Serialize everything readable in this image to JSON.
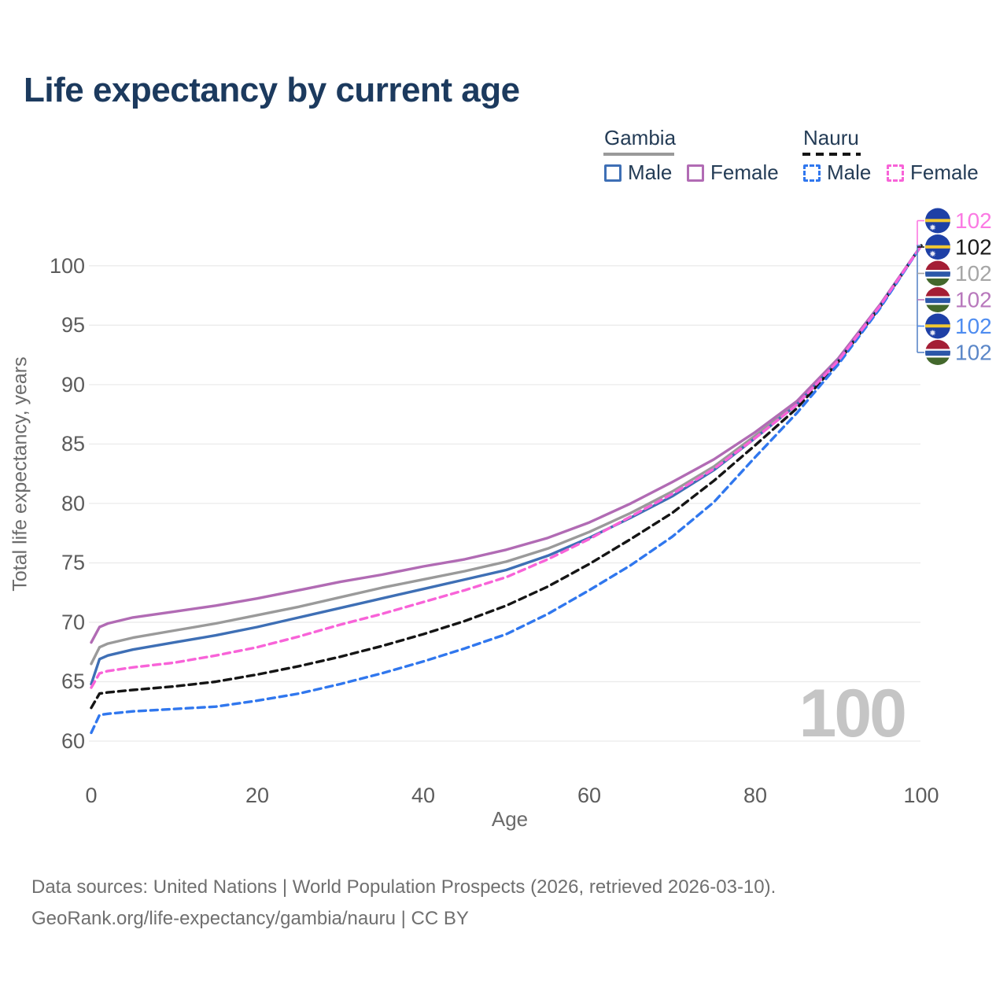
{
  "title": "Life expectancy by current age",
  "age_indicator": "100",
  "legend": {
    "position": "top-right",
    "groups": [
      {
        "label": "Gambia",
        "line_style": "solid",
        "line_color": "#9a9a9a",
        "items": [
          {
            "label": "Male",
            "color": "#3e6fb5",
            "style": "solid"
          },
          {
            "label": "Female",
            "color": "#b16bb4",
            "style": "solid"
          }
        ]
      },
      {
        "label": "Nauru",
        "line_style": "dashed",
        "line_color": "#151515",
        "items": [
          {
            "label": "Male",
            "color": "#3077ee",
            "style": "dashed"
          },
          {
            "label": "Female",
            "color": "#f863d8",
            "style": "dashed"
          }
        ]
      }
    ]
  },
  "chart_data": {
    "type": "line",
    "title": "Life expectancy by current age",
    "xlabel": "Age",
    "ylabel": "Total life expectancy, years",
    "x_ticks": [
      0,
      20,
      40,
      60,
      80,
      100
    ],
    "y_ticks": [
      60,
      65,
      70,
      75,
      80,
      85,
      90,
      95,
      100
    ],
    "xlim": [
      0,
      100
    ],
    "ylim": [
      58.5,
      103
    ],
    "grid": "horizontal",
    "x": [
      0,
      1,
      2,
      5,
      10,
      15,
      20,
      25,
      30,
      35,
      40,
      45,
      50,
      55,
      60,
      65,
      70,
      75,
      80,
      85,
      90,
      95,
      100
    ],
    "series": [
      {
        "name": "Gambia",
        "country": "Gambia",
        "sex": "both",
        "color": "#9a9a9a",
        "dash": false,
        "flag": "gambia",
        "endpoint_label": "102",
        "label_color": "#a6a6a6",
        "values": [
          66.5,
          67.9,
          68.2,
          68.7,
          69.3,
          69.9,
          70.6,
          71.3,
          72.1,
          72.9,
          73.6,
          74.3,
          75.1,
          76.2,
          77.6,
          79.2,
          81.0,
          83.1,
          85.7,
          88.4,
          92.1,
          96.6,
          101.7
        ]
      },
      {
        "name": "Gambia Female",
        "country": "Gambia",
        "sex": "female",
        "color": "#b16bb4",
        "dash": false,
        "flag": "gambia",
        "endpoint_label": "102",
        "label_color": "#b878bc",
        "values": [
          68.3,
          69.6,
          69.9,
          70.4,
          70.9,
          71.4,
          72.0,
          72.7,
          73.4,
          74.0,
          74.7,
          75.3,
          76.1,
          77.1,
          78.4,
          80.0,
          81.8,
          83.7,
          86.0,
          88.6,
          92.2,
          96.7,
          101.7
        ]
      },
      {
        "name": "Gambia Male",
        "country": "Gambia",
        "sex": "male",
        "color": "#3e6fb5",
        "dash": false,
        "flag": "gambia",
        "endpoint_label": "102",
        "label_color": "#5b87c8",
        "values": [
          64.8,
          66.9,
          67.2,
          67.7,
          68.3,
          68.9,
          69.6,
          70.4,
          71.2,
          72.0,
          72.8,
          73.6,
          74.4,
          75.6,
          77.1,
          78.8,
          80.6,
          82.8,
          85.5,
          88.3,
          92.0,
          96.6,
          101.7
        ]
      },
      {
        "name": "Nauru",
        "country": "Nauru",
        "sex": "both",
        "color": "#151515",
        "dash": true,
        "flag": "nauru",
        "endpoint_label": "102",
        "label_color": "#1a1a1a",
        "values": [
          62.8,
          64.0,
          64.1,
          64.3,
          64.6,
          65.0,
          65.6,
          66.3,
          67.1,
          68.0,
          69.0,
          70.1,
          71.4,
          73.0,
          74.9,
          77.0,
          79.2,
          81.9,
          84.9,
          88.0,
          91.9,
          96.5,
          101.7
        ]
      },
      {
        "name": "Nauru Male",
        "country": "Nauru",
        "sex": "male",
        "color": "#3077ee",
        "dash": true,
        "flag": "nauru",
        "endpoint_label": "102",
        "label_color": "#4e8cf0",
        "values": [
          60.7,
          62.2,
          62.3,
          62.5,
          62.7,
          62.9,
          63.4,
          64.0,
          64.8,
          65.7,
          66.7,
          67.8,
          69.0,
          70.7,
          72.7,
          74.8,
          77.2,
          80.1,
          83.9,
          87.6,
          91.7,
          96.4,
          101.7
        ]
      },
      {
        "name": "Nauru Female",
        "country": "Nauru",
        "sex": "female",
        "color": "#f863d8",
        "dash": true,
        "flag": "nauru",
        "endpoint_label": "102",
        "label_color": "#fb7ae3",
        "values": [
          64.5,
          65.7,
          65.9,
          66.2,
          66.6,
          67.2,
          67.9,
          68.8,
          69.8,
          70.7,
          71.7,
          72.7,
          73.8,
          75.3,
          77.0,
          78.9,
          80.8,
          82.9,
          85.5,
          88.3,
          92.0,
          96.6,
          101.7
        ]
      }
    ],
    "endpoint_marker_order_top_to_bottom": [
      "Nauru Female",
      "Nauru",
      "Gambia",
      "Gambia Female",
      "Nauru Male",
      "Gambia Male"
    ]
  },
  "flags": {
    "nauru": {
      "bg": "#1e40a6",
      "stripe": "#f2c832",
      "star": "#e8e9f5"
    },
    "gambia": {
      "red": "#a41e35",
      "white": "#ffffff",
      "blue": "#2b57a8",
      "green": "#43682c"
    }
  },
  "footer": {
    "line1": "Data sources: United Nations | World Population Prospects (2026, retrieved 2026-03-10).",
    "line2": "GeoRank.org/life-expectancy/gambia/nauru | CC BY"
  }
}
